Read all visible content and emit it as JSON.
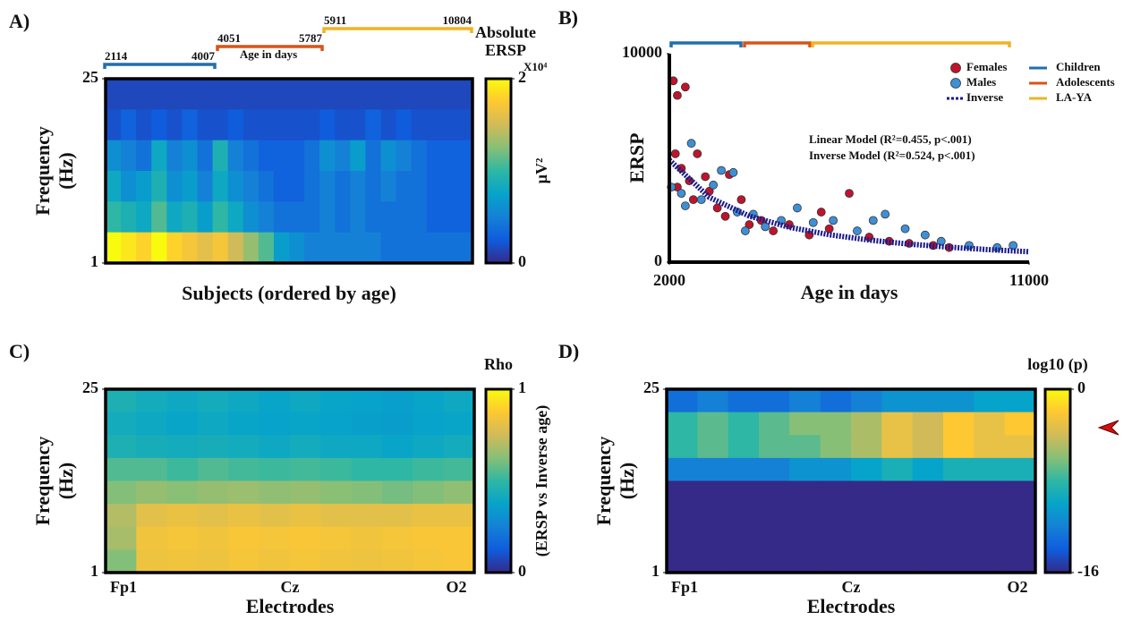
{
  "colormap": [
    "#352a87",
    "#0f5cdd",
    "#1481d6",
    "#06a4ca",
    "#2eb7a4",
    "#87bf77",
    "#d1bb59",
    "#fec832",
    "#f9fb0e"
  ],
  "chart_data": [
    {
      "type": "heatmap",
      "panel": "A)",
      "colorbar_title": "Absolute ERSP",
      "colorbar_multiplier": "X10⁴",
      "colorbar_label": "µV²",
      "xlabel": "Subjects (ordered by age)",
      "ylabel": "Frequency (Hz)",
      "ylim": [
        1,
        25
      ],
      "yticks": [
        1,
        25
      ],
      "zlim": [
        0,
        2
      ],
      "zticks": [
        0,
        2
      ],
      "age_label": "Age in days",
      "age_ranges": [
        {
          "start": 2114,
          "end": 4007,
          "color": "#1f6fb0"
        },
        {
          "start": 4051,
          "end": 5787,
          "color": "#d95319"
        },
        {
          "start": 5911,
          "end": 10804,
          "color": "#f0b323"
        }
      ],
      "z": [
        [
          0.15,
          0.15,
          0.15,
          0.15,
          0.15,
          0.15,
          0.15,
          0.15,
          0.15,
          0.15,
          0.15,
          0.15,
          0.15,
          0.15,
          0.15,
          0.15,
          0.15,
          0.15,
          0.15,
          0.15,
          0.15,
          0.15,
          0.15,
          0.15
        ],
        [
          0.2,
          0.3,
          0.2,
          0.25,
          0.2,
          0.3,
          0.2,
          0.2,
          0.25,
          0.2,
          0.2,
          0.2,
          0.2,
          0.2,
          0.25,
          0.2,
          0.2,
          0.3,
          0.2,
          0.25,
          0.2,
          0.2,
          0.2,
          0.2
        ],
        [
          0.6,
          0.5,
          0.4,
          0.8,
          0.5,
          0.6,
          0.4,
          0.9,
          0.5,
          0.4,
          0.3,
          0.3,
          0.3,
          0.4,
          0.6,
          0.5,
          0.7,
          0.4,
          0.6,
          0.5,
          0.4,
          0.3,
          0.3,
          0.3
        ],
        [
          0.8,
          0.6,
          0.7,
          0.9,
          0.6,
          0.7,
          0.5,
          0.8,
          0.6,
          0.5,
          0.4,
          0.3,
          0.3,
          0.4,
          0.5,
          0.4,
          0.5,
          0.4,
          0.5,
          0.4,
          0.4,
          0.3,
          0.3,
          0.3
        ],
        [
          1.0,
          0.9,
          0.8,
          1.1,
          0.8,
          0.9,
          0.7,
          1.0,
          0.8,
          0.6,
          0.5,
          0.4,
          0.4,
          0.4,
          0.5,
          0.4,
          0.5,
          0.4,
          0.4,
          0.4,
          0.4,
          0.3,
          0.3,
          0.3
        ],
        [
          2,
          1.9,
          1.8,
          2,
          1.8,
          1.7,
          1.6,
          1.7,
          1.5,
          1.3,
          1.1,
          0.7,
          0.6,
          0.5,
          0.5,
          0.5,
          0.5,
          0.5,
          0.4,
          0.4,
          0.4,
          0.4,
          0.4,
          0.4
        ]
      ]
    },
    {
      "type": "scatter",
      "panel": "B)",
      "xlabel": "Age in days",
      "ylabel": "ERSP",
      "xlim": [
        2000,
        11000
      ],
      "xticks": [
        2000,
        11000
      ],
      "ylim": [
        0,
        10000
      ],
      "yticks": [
        0,
        10000
      ],
      "series": [
        {
          "name": "Females",
          "color": "#c0142c",
          "x": [
            2100,
            2200,
            2400,
            2150,
            2300,
            2500,
            2700,
            2900,
            2200,
            2600,
            3000,
            3200,
            3500,
            3400,
            3800,
            4000,
            4300,
            4600,
            5000,
            5500,
            6000,
            6500,
            7000,
            7500,
            8000,
            8600,
            9000,
            5800
          ],
          "values": [
            8700,
            8000,
            8400,
            5200,
            4500,
            3900,
            5200,
            4100,
            3600,
            3000,
            3400,
            2600,
            4200,
            2200,
            3000,
            1800,
            2000,
            1500,
            1800,
            1300,
            1600,
            3300,
            1200,
            1000,
            900,
            800,
            700,
            2400
          ]
        },
        {
          "name": "Males",
          "color": "#3f8fd6",
          "x": [
            2050,
            2300,
            2550,
            2800,
            3100,
            3300,
            3600,
            2400,
            3700,
            4100,
            4400,
            4800,
            5200,
            5600,
            6100,
            6700,
            7100,
            7400,
            7900,
            8400,
            8800,
            9500,
            10200,
            10600,
            3900
          ],
          "values": [
            3600,
            3300,
            5700,
            3000,
            3700,
            4400,
            4300,
            2700,
            2400,
            2300,
            1700,
            2000,
            2600,
            1900,
            2000,
            1500,
            2000,
            2300,
            1600,
            1300,
            1000,
            800,
            700,
            800,
            1500
          ]
        },
        {
          "name": "Inverse",
          "color": "#1a1a8c",
          "line": true,
          "x": [
            2000,
            3000,
            4000,
            5000,
            6000,
            7000,
            8000,
            9000,
            10000,
            11000
          ],
          "values": [
            4900,
            3107,
            2211,
            1673,
            1315,
            1059,
            867,
            717,
            598,
            500
          ]
        }
      ],
      "groups": [
        {
          "name": "Children",
          "color": "#1f6fb0"
        },
        {
          "name": "Adolescents",
          "color": "#d95319"
        },
        {
          "name": "LA-YA",
          "color": "#f0b323"
        }
      ],
      "annotations": [
        "Linear  Model (R²=0.455, p<.001)",
        "Inverse Model (R²=0.524, p<.001)"
      ]
    },
    {
      "type": "heatmap",
      "panel": "C)",
      "colorbar_title": "Rho",
      "colorbar_label": "(ERSP vs  Inverse age)",
      "xlabel": "Electrodes",
      "xticklabels": [
        "Fp1",
        "Cz",
        "O2"
      ],
      "ylabel": "Frequency (Hz)",
      "ylim": [
        1,
        25
      ],
      "yticks": [
        1,
        25
      ],
      "zlim": [
        0,
        1
      ],
      "zticks": [
        0,
        1
      ],
      "z": [
        [
          0.45,
          0.42,
          0.4,
          0.42,
          0.4,
          0.38,
          0.4,
          0.38,
          0.37,
          0.36,
          0.38,
          0.4
        ],
        [
          0.42,
          0.4,
          0.38,
          0.4,
          0.38,
          0.37,
          0.38,
          0.37,
          0.36,
          0.35,
          0.37,
          0.38
        ],
        [
          0.45,
          0.43,
          0.42,
          0.43,
          0.42,
          0.4,
          0.42,
          0.4,
          0.4,
          0.38,
          0.4,
          0.42
        ],
        [
          0.55,
          0.55,
          0.52,
          0.55,
          0.53,
          0.52,
          0.53,
          0.52,
          0.5,
          0.5,
          0.52,
          0.53
        ],
        [
          0.62,
          0.65,
          0.63,
          0.65,
          0.66,
          0.64,
          0.65,
          0.63,
          0.62,
          0.6,
          0.62,
          0.64
        ],
        [
          0.7,
          0.8,
          0.82,
          0.8,
          0.82,
          0.8,
          0.82,
          0.8,
          0.8,
          0.8,
          0.82,
          0.82
        ],
        [
          0.68,
          0.84,
          0.85,
          0.84,
          0.86,
          0.85,
          0.86,
          0.85,
          0.84,
          0.85,
          0.86,
          0.86
        ],
        [
          0.62,
          0.83,
          0.84,
          0.83,
          0.85,
          0.84,
          0.85,
          0.84,
          0.83,
          0.84,
          0.85,
          0.86
        ]
      ]
    },
    {
      "type": "heatmap",
      "panel": "D)",
      "colorbar_title": "log10 (p)",
      "xlabel": "Electrodes",
      "xticklabels": [
        "Fp1",
        "Cz",
        "O2"
      ],
      "ylabel": "Frequency (Hz)",
      "ylim": [
        1,
        25
      ],
      "yticks": [
        1,
        25
      ],
      "zlim": [
        -16,
        0
      ],
      "zticks": [
        -16,
        0
      ],
      "z": [
        [
          -13,
          -12,
          -13,
          -13,
          -12,
          -13,
          -12,
          -11,
          -11,
          -11,
          -10,
          -10
        ],
        [
          -8,
          -7,
          -8,
          -7,
          -6,
          -6,
          -5,
          -3,
          -4,
          -2,
          -3,
          -2
        ],
        [
          -8,
          -7,
          -8,
          -7,
          -7,
          -6,
          -5,
          -3,
          -4,
          -2,
          -3,
          -3
        ],
        [
          -12,
          -12,
          -12,
          -12,
          -11,
          -11,
          -10,
          -9,
          -10,
          -9,
          -9,
          -9
        ],
        [
          -16,
          -16,
          -16,
          -16,
          -16,
          -16,
          -16,
          -16,
          -16,
          -16,
          -16,
          -16
        ],
        [
          -16,
          -16,
          -16,
          -16,
          -16,
          -16,
          -16,
          -16,
          -16,
          -16,
          -16,
          -16
        ],
        [
          -16,
          -16,
          -16,
          -16,
          -16,
          -16,
          -16,
          -16,
          -16,
          -16,
          -16,
          -16
        ],
        [
          -16,
          -16,
          -16,
          -16,
          -16,
          -16,
          -16,
          -16,
          -16,
          -16,
          -16,
          -16
        ]
      ]
    }
  ]
}
